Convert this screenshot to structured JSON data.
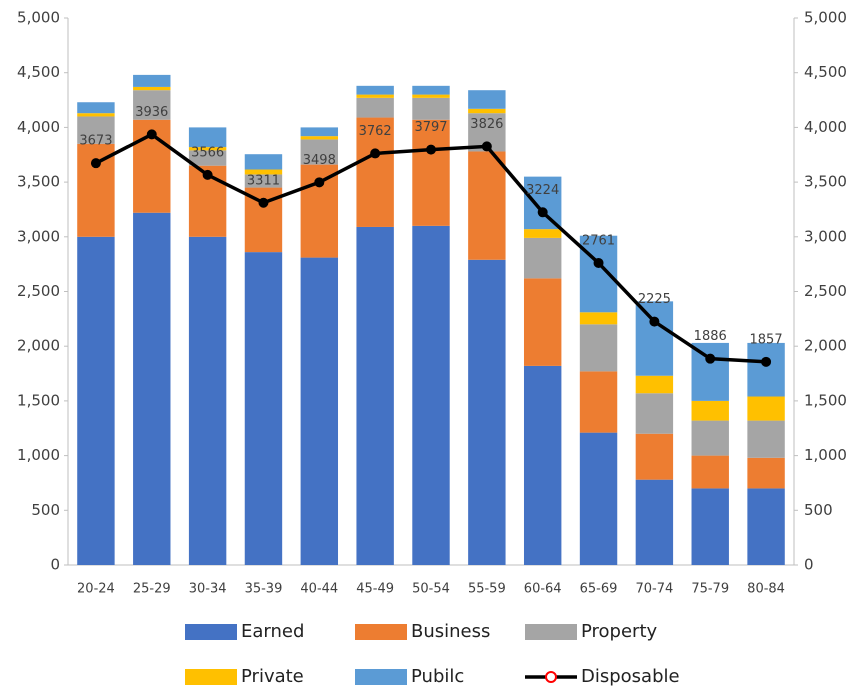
{
  "chart_data": {
    "type": "bar",
    "categories": [
      "20-24",
      "25-29",
      "30-34",
      "35-39",
      "40-44",
      "45-49",
      "50-54",
      "55-59",
      "60-64",
      "65-69",
      "70-74",
      "75-79",
      "80-84"
    ],
    "series": [
      {
        "name": "Earned",
        "type": "bar",
        "color": "#4472c4",
        "values": [
          3000,
          3220,
          3000,
          2860,
          2810,
          3090,
          3100,
          2790,
          1820,
          1210,
          780,
          700,
          700
        ]
      },
      {
        "name": "Business",
        "type": "bar",
        "color": "#ed7d31",
        "values": [
          850,
          850,
          650,
          590,
          850,
          1000,
          970,
          990,
          800,
          560,
          420,
          300,
          280
        ]
      },
      {
        "name": "Property",
        "type": "bar",
        "color": "#a5a5a5",
        "values": [
          250,
          270,
          140,
          120,
          230,
          180,
          200,
          350,
          370,
          430,
          370,
          320,
          340
        ]
      },
      {
        "name": "Private",
        "type": "bar",
        "color": "#ffc000",
        "values": [
          30,
          30,
          30,
          45,
          30,
          30,
          30,
          40,
          80,
          110,
          160,
          180,
          220
        ]
      },
      {
        "name": "Pubilc",
        "type": "bar",
        "color": "#5b9bd5",
        "values": [
          100,
          110,
          180,
          140,
          80,
          80,
          80,
          170,
          480,
          700,
          680,
          530,
          490
        ]
      },
      {
        "name": "Disposable",
        "type": "line",
        "axis": "y2",
        "color": "#000000",
        "marker_color": "#ff0000",
        "values": [
          3673,
          3936,
          3566,
          3311,
          3498,
          3762,
          3797,
          3826,
          3224,
          2761,
          2225,
          1886,
          1857
        ]
      }
    ],
    "ylim": [
      0,
      5000
    ],
    "yticks": [
      0,
      500,
      {
        "value": 1000,
        "label": "1,000"
      },
      {
        "value": 1500,
        "label": "1,500"
      },
      {
        "value": 2000,
        "label": "2,000"
      },
      {
        "value": 2500,
        "label": "2,500"
      },
      {
        "value": 3000,
        "label": "3,000"
      },
      {
        "value": 3500,
        "label": "3,500"
      },
      {
        "value": 4000,
        "label": "4,000"
      },
      {
        "value": 4500,
        "label": "4,500"
      },
      {
        "value": 5000,
        "label": "5,000"
      }
    ],
    "y2lim": [
      0,
      5000
    ],
    "y2ticks": [
      0,
      500,
      {
        "value": 1000,
        "label": "1,000"
      },
      {
        "value": 1500,
        "label": "1,500"
      },
      {
        "value": 2000,
        "label": "2,000"
      },
      {
        "value": 2500,
        "label": "2,500"
      },
      {
        "value": 3000,
        "label": "3,000"
      },
      {
        "value": 3500,
        "label": "3,500"
      },
      {
        "value": 4000,
        "label": "4,000"
      },
      {
        "value": 4500,
        "label": "4,500"
      },
      {
        "value": 5000,
        "label": "5,000"
      }
    ],
    "grid": false
  }
}
